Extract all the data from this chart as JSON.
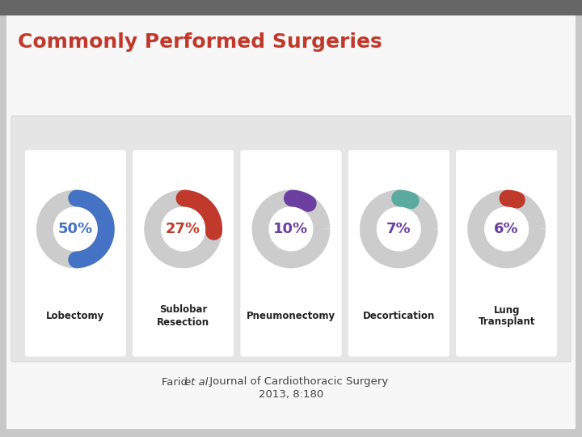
{
  "title": "Commonly Performed Surgeries",
  "title_color": "#c0392b",
  "title_fontsize": 18,
  "items": [
    {
      "pct": 50,
      "label": "Lobectomy",
      "arc_color": "#4472c4",
      "text_color": "#4472c4",
      "bg_color": "#cccccc"
    },
    {
      "pct": 27,
      "label": "Sublobar\nResection",
      "arc_color": "#c0392b",
      "text_color": "#c0392b",
      "bg_color": "#cccccc"
    },
    {
      "pct": 10,
      "label": "Pneumonectomy",
      "arc_color": "#6b3fa0",
      "text_color": "#6b3fa0",
      "bg_color": "#cccccc"
    },
    {
      "pct": 7,
      "label": "Decortication",
      "arc_color": "#5baaa0",
      "text_color": "#6b3fa0",
      "bg_color": "#cccccc"
    },
    {
      "pct": 6,
      "label": "Lung\nTransplant",
      "arc_color": "#c0392b",
      "text_color": "#6b3fa0",
      "bg_color": "#cccccc"
    }
  ],
  "ref_normal1": "Farid ",
  "ref_italic": "et al.",
  "ref_normal2": " Journal of Cardiothoracic Surgery",
  "ref_line2": "2013, 8:180",
  "ref_fontsize": 9.5
}
